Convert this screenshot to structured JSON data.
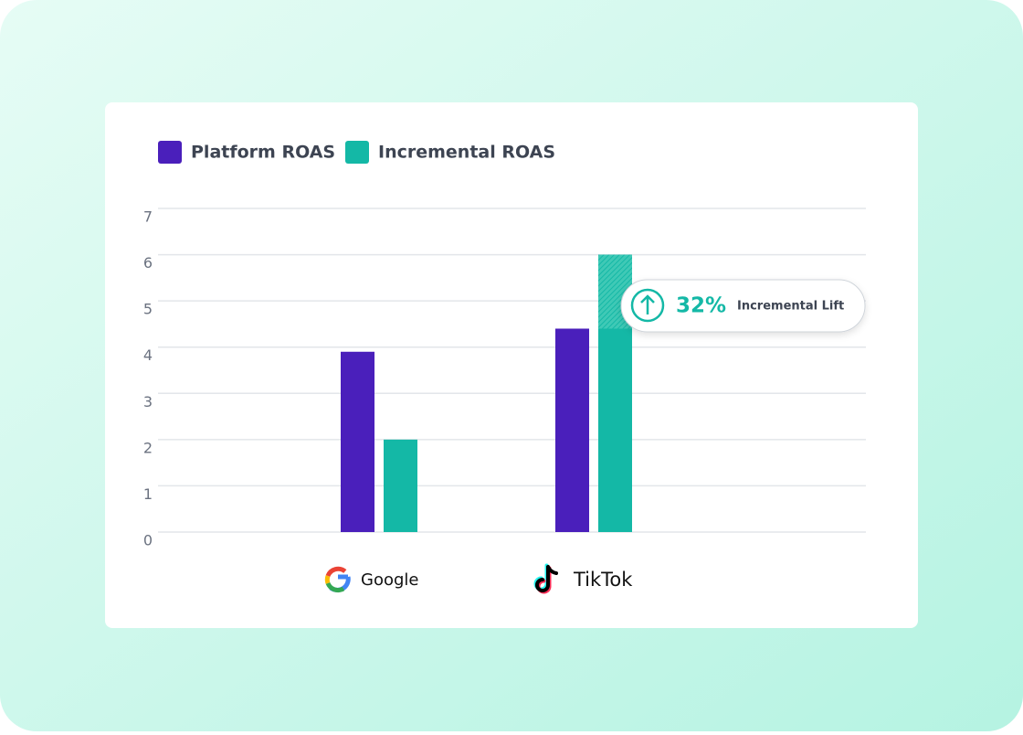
{
  "chart_data": {
    "type": "bar",
    "categories": [
      "Google",
      "TikTok"
    ],
    "series": [
      {
        "name": "Platform ROAS",
        "color": "#4a1fbb",
        "values": [
          3.9,
          4.4
        ]
      },
      {
        "name": "Incremental ROAS",
        "color": "#14b8a6",
        "values": [
          2.0,
          6.0
        ]
      }
    ],
    "ylim": [
      0,
      7
    ],
    "yticks": [
      0,
      1,
      2,
      3,
      4,
      5,
      6,
      7
    ],
    "grid": true,
    "annotation": {
      "value": "32%",
      "text": "Incremental Lift"
    }
  }
}
